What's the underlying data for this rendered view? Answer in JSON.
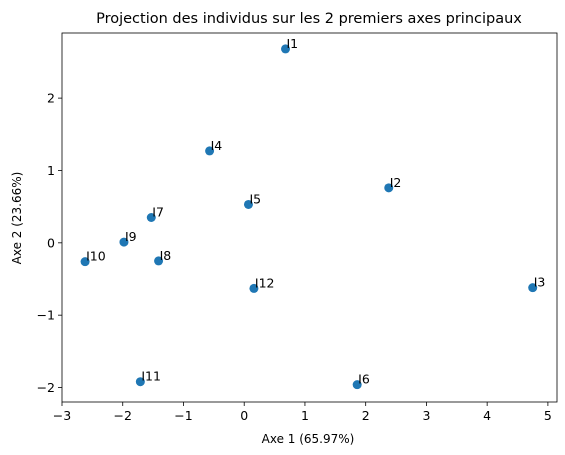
{
  "chart_data": {
    "type": "scatter",
    "title": "Projection des individus sur les 2 premiers axes principaux",
    "xlabel": "Axe 1 (65.97%)",
    "ylabel": "Axe 2 (23.66%)",
    "xlim": [
      -3.0,
      5.15
    ],
    "ylim": [
      -2.2,
      2.9
    ],
    "xticks": [
      -3,
      -2,
      -1,
      0,
      1,
      2,
      3,
      4,
      5
    ],
    "yticks": [
      -2,
      -1,
      0,
      1,
      2
    ],
    "grid": false,
    "point_color": "#1f77b4",
    "points": [
      {
        "label": "I1",
        "x": 0.68,
        "y": 2.68
      },
      {
        "label": "I2",
        "x": 2.38,
        "y": 0.76
      },
      {
        "label": "I3",
        "x": 4.75,
        "y": -0.62
      },
      {
        "label": "I4",
        "x": -0.57,
        "y": 1.27
      },
      {
        "label": "I5",
        "x": 0.07,
        "y": 0.53
      },
      {
        "label": "I6",
        "x": 1.86,
        "y": -1.96
      },
      {
        "label": "I7",
        "x": -1.53,
        "y": 0.35
      },
      {
        "label": "I8",
        "x": -1.41,
        "y": -0.25
      },
      {
        "label": "I9",
        "x": -1.98,
        "y": 0.01
      },
      {
        "label": "I10",
        "x": -2.62,
        "y": -0.26
      },
      {
        "label": "I11",
        "x": -1.71,
        "y": -1.92
      },
      {
        "label": "I12",
        "x": 0.16,
        "y": -0.63
      }
    ]
  }
}
